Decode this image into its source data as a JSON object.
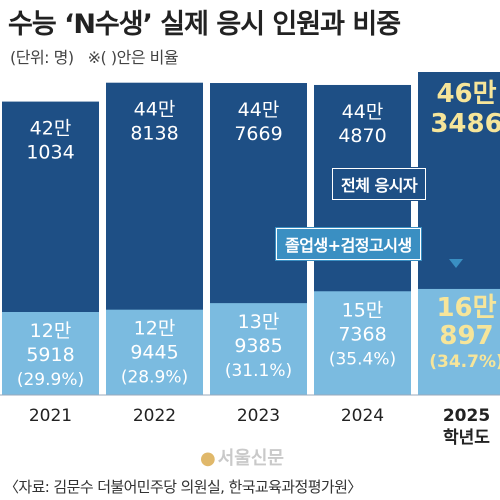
{
  "header": {
    "title": "수능 ‘N수생’ 실제 응시 인원과 비중",
    "unit_note": "(단위: 명)",
    "ratio_note": "※( )안은 비율"
  },
  "colors": {
    "total_bar": "#1e4f85",
    "grad_bar": "#7bbbe0",
    "highlight_text": "#f6e59a",
    "total_badge": "#1e4f85",
    "grad_badge": "#3a8fc2"
  },
  "chart_data": {
    "type": "bar",
    "stacked": true,
    "title": "수능 ‘N수생’ 실제 응시 인원과 비중",
    "categories": [
      "2021",
      "2022",
      "2023",
      "2024",
      "2025"
    ],
    "category_suffix": {
      "2025": "학년도"
    },
    "series": [
      {
        "name": "전체 응시자",
        "values": [
          421034,
          448138,
          447669,
          444870,
          463486
        ],
        "labels_line1": [
          "42만",
          "44만",
          "44만",
          "44만",
          "46만"
        ],
        "labels_line2": [
          "1034",
          "8138",
          "7669",
          "4870",
          "3486"
        ]
      },
      {
        "name": "졸업생+검정고시생",
        "values": [
          125918,
          129445,
          139385,
          157368,
          160897
        ],
        "labels_line1": [
          "12만",
          "12만",
          "13만",
          "15만",
          "16만"
        ],
        "labels_line2": [
          "5918",
          "9445",
          "9385",
          "7368",
          "897"
        ],
        "ratios": [
          "(29.9%)",
          "(28.9%)",
          "(31.1%)",
          "(35.4%)",
          "(34.7%)"
        ]
      }
    ],
    "highlight_category": "2025",
    "grid": false,
    "xlabel": "",
    "ylabel": ""
  },
  "legend": {
    "total_label": "전체 응시자",
    "grad_label": "졸업생+검정고시생"
  },
  "watermark": "서울신문",
  "source": "〈자료: 김문수 더불어민주당 의원실, 한국교육과정평가원〉"
}
